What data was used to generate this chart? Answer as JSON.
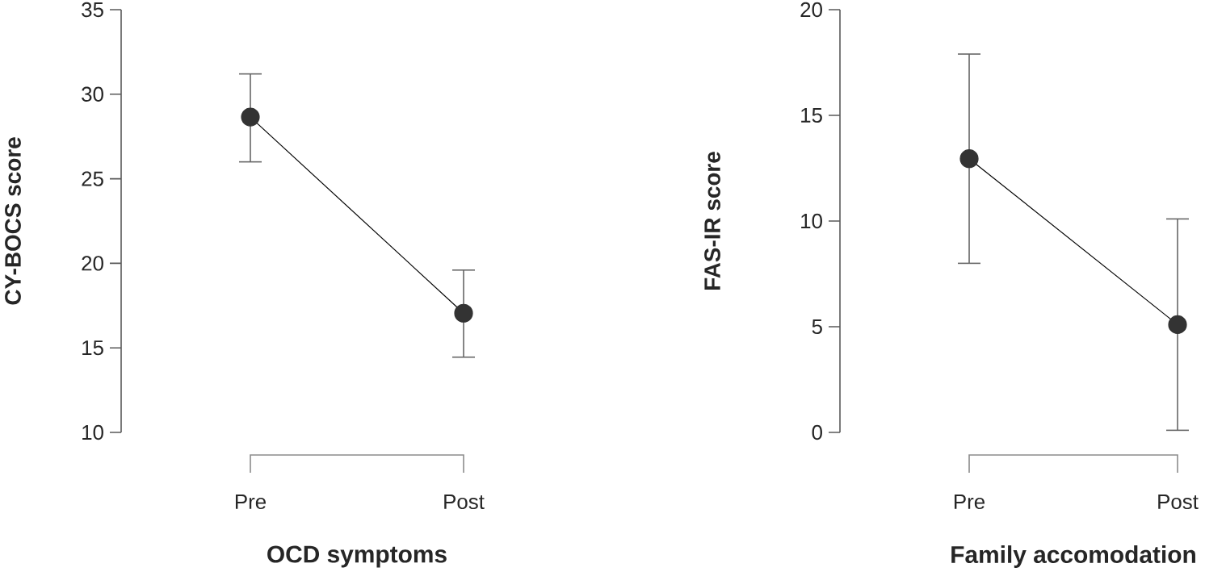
{
  "chart_data": [
    {
      "type": "line",
      "categories": [
        "Pre",
        "Post"
      ],
      "xlabel": "OCD symptoms",
      "ylabel": "CY-BOCS score",
      "ylim": [
        10,
        35
      ],
      "yticks": [
        10,
        15,
        20,
        25,
        30,
        35
      ],
      "marker": "circle",
      "line_style": "solid",
      "series": [
        {
          "color": "#333333",
          "values": [
            28.65,
            17.05
          ],
          "errors": [
            [
              26.0,
              31.2
            ],
            [
              14.45,
              19.6
            ]
          ]
        }
      ]
    },
    {
      "type": "line",
      "categories": [
        "Pre",
        "Post"
      ],
      "xlabel": "Family accomodation",
      "ylabel": "FAS-IR score",
      "ylim": [
        0,
        20
      ],
      "yticks": [
        0,
        5,
        10,
        15,
        20
      ],
      "marker": "circle",
      "line_style": "solid",
      "series": [
        {
          "color": "#333333",
          "values": [
            12.95,
            5.1
          ],
          "errors": [
            [
              8.0,
              17.9
            ],
            [
              0.1,
              10.1
            ]
          ]
        }
      ]
    }
  ]
}
